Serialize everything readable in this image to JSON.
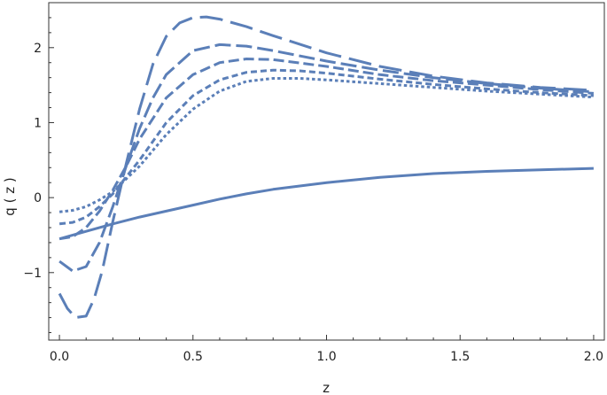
{
  "chart_data": {
    "type": "line",
    "title": "",
    "xlabel": "z",
    "ylabel": "q ( z )",
    "xlim": [
      -0.04,
      2.04
    ],
    "ylim": [
      -1.9,
      2.6
    ],
    "grid": false,
    "x_ticks": [
      0.0,
      0.5,
      1.0,
      1.5,
      2.0
    ],
    "x_tick_labels": [
      "0.0",
      "0.5",
      "1.0",
      "1.5",
      "2.0"
    ],
    "y_ticks": [
      -1,
      0,
      1,
      2
    ],
    "y_tick_labels": [
      "−1",
      "0",
      "1",
      "2"
    ],
    "line_color": "#5b7fb8",
    "series": [
      {
        "style": "solid",
        "x": [
          0.0,
          0.1,
          0.2,
          0.3,
          0.4,
          0.5,
          0.6,
          0.7,
          0.8,
          1.0,
          1.2,
          1.4,
          1.6,
          1.8,
          2.0
        ],
        "y": [
          -0.55,
          -0.45,
          -0.35,
          -0.26,
          -0.18,
          -0.1,
          -0.02,
          0.05,
          0.11,
          0.2,
          0.27,
          0.32,
          0.35,
          0.37,
          0.39
        ]
      },
      {
        "style": "dotted",
        "x": [
          0.0,
          0.05,
          0.1,
          0.15,
          0.2,
          0.3,
          0.4,
          0.5,
          0.6,
          0.7,
          0.8,
          0.9,
          1.0,
          1.2,
          1.4,
          1.6,
          1.8,
          2.0
        ],
        "y": [
          -0.19,
          -0.17,
          -0.12,
          -0.03,
          0.08,
          0.42,
          0.84,
          1.18,
          1.42,
          1.55,
          1.59,
          1.59,
          1.57,
          1.52,
          1.47,
          1.42,
          1.38,
          1.34
        ]
      },
      {
        "style": "short-dash",
        "x": [
          0.0,
          0.05,
          0.1,
          0.15,
          0.2,
          0.3,
          0.4,
          0.5,
          0.6,
          0.7,
          0.8,
          0.9,
          1.0,
          1.2,
          1.4,
          1.6,
          1.8,
          2.0
        ],
        "y": [
          -0.35,
          -0.33,
          -0.26,
          -0.12,
          0.05,
          0.5,
          1.0,
          1.36,
          1.57,
          1.67,
          1.7,
          1.69,
          1.66,
          1.58,
          1.51,
          1.45,
          1.4,
          1.36
        ]
      },
      {
        "style": "medium-dash",
        "x": [
          0.0,
          0.05,
          0.1,
          0.15,
          0.2,
          0.25,
          0.3,
          0.4,
          0.5,
          0.6,
          0.7,
          0.8,
          1.0,
          1.2,
          1.4,
          1.6,
          1.8,
          2.0
        ],
        "y": [
          -0.55,
          -0.52,
          -0.4,
          -0.18,
          0.1,
          0.42,
          0.78,
          1.33,
          1.64,
          1.8,
          1.85,
          1.84,
          1.75,
          1.64,
          1.56,
          1.5,
          1.44,
          1.39
        ]
      },
      {
        "style": "long-dash",
        "x": [
          0.0,
          0.05,
          0.1,
          0.15,
          0.2,
          0.25,
          0.3,
          0.35,
          0.4,
          0.5,
          0.6,
          0.7,
          0.8,
          1.0,
          1.2,
          1.4,
          1.6,
          1.8,
          2.0
        ],
        "y": [
          -0.85,
          -0.98,
          -0.92,
          -0.6,
          -0.12,
          0.42,
          0.92,
          1.33,
          1.64,
          1.96,
          2.04,
          2.02,
          1.96,
          1.82,
          1.7,
          1.6,
          1.52,
          1.46,
          1.41
        ]
      },
      {
        "style": "extra-long-dash",
        "x": [
          0.0,
          0.03,
          0.06,
          0.1,
          0.13,
          0.16,
          0.2,
          0.25,
          0.3,
          0.35,
          0.4,
          0.45,
          0.5,
          0.55,
          0.6,
          0.7,
          0.8,
          1.0,
          1.2,
          1.4,
          1.6,
          1.8,
          2.0
        ],
        "y": [
          -1.28,
          -1.48,
          -1.6,
          -1.58,
          -1.35,
          -0.98,
          -0.32,
          0.45,
          1.18,
          1.78,
          2.15,
          2.33,
          2.4,
          2.41,
          2.38,
          2.28,
          2.16,
          1.93,
          1.75,
          1.62,
          1.53,
          1.47,
          1.43
        ]
      }
    ]
  }
}
